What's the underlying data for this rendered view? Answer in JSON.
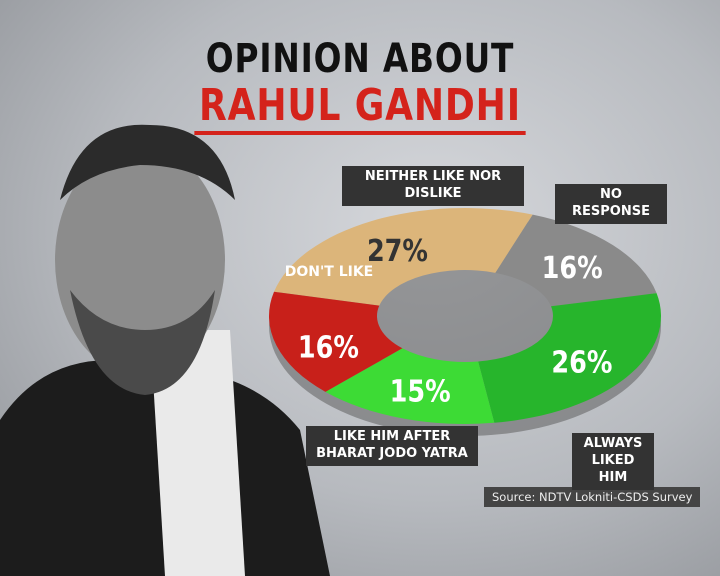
{
  "chart_data": {
    "type": "pie",
    "title": "OPINION ABOUT",
    "subtitle": "RAHUL GANDHI",
    "categories": [
      "NEITHER LIKE NOR DISLIKE",
      "NO RESPONSE",
      "ALWAYS LIKED HIM",
      "LIKE HIM AFTER BHARAT JODO YATRA",
      "DON'T LIKE"
    ],
    "values": [
      27,
      16,
      26,
      15,
      16
    ],
    "value_labels": [
      "27%",
      "16%",
      "26%",
      "15%",
      "16%"
    ],
    "colors": [
      "#dcb57a",
      "#8a8a8a",
      "#27b52c",
      "#3ddb35",
      "#c8201a"
    ],
    "source": "Source: NDTV Lokniti-CSDS Survey"
  }
}
